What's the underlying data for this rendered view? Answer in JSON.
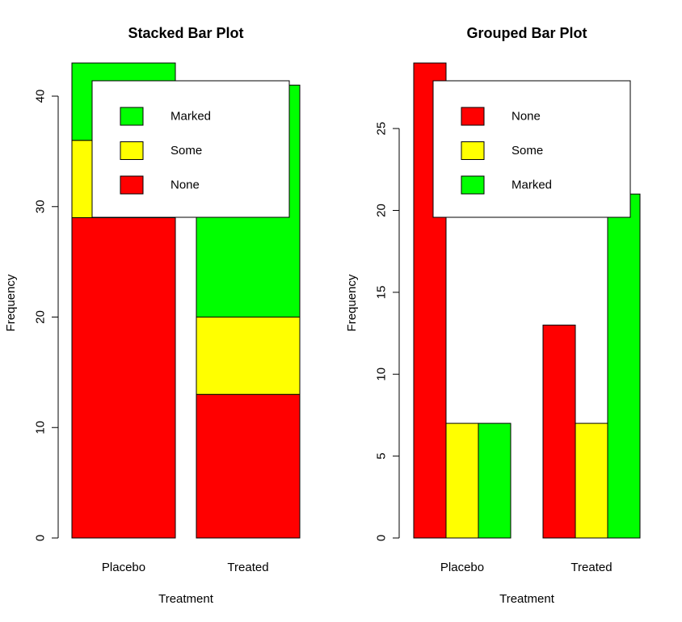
{
  "colors": {
    "None": "#ff0000",
    "Some": "#ffff00",
    "Marked": "#00ff00"
  },
  "chart_data": [
    {
      "type": "bar",
      "mode": "stacked",
      "title": "Stacked Bar Plot",
      "xlabel": "Treatment",
      "ylabel": "Frequency",
      "categories": [
        "Placebo",
        "Treated"
      ],
      "series": [
        {
          "name": "None",
          "values": [
            29,
            13
          ]
        },
        {
          "name": "Some",
          "values": [
            7,
            7
          ]
        },
        {
          "name": "Marked",
          "values": [
            7,
            21
          ]
        }
      ],
      "ylim": [
        0,
        43
      ],
      "yticks": [
        0,
        10,
        20,
        30,
        40
      ],
      "legend": {
        "position": "top-right",
        "entries": [
          "Marked",
          "Some",
          "None"
        ]
      }
    },
    {
      "type": "bar",
      "mode": "grouped",
      "title": "Grouped Bar Plot",
      "xlabel": "Treatment",
      "ylabel": "Frequency",
      "categories": [
        "Placebo",
        "Treated"
      ],
      "series": [
        {
          "name": "None",
          "values": [
            29,
            13
          ]
        },
        {
          "name": "Some",
          "values": [
            7,
            7
          ]
        },
        {
          "name": "Marked",
          "values": [
            7,
            21
          ]
        }
      ],
      "ylim": [
        0,
        29
      ],
      "yticks": [
        0,
        5,
        10,
        15,
        20,
        25
      ],
      "legend": {
        "position": "top-right",
        "entries": [
          "None",
          "Some",
          "Marked"
        ]
      }
    }
  ]
}
